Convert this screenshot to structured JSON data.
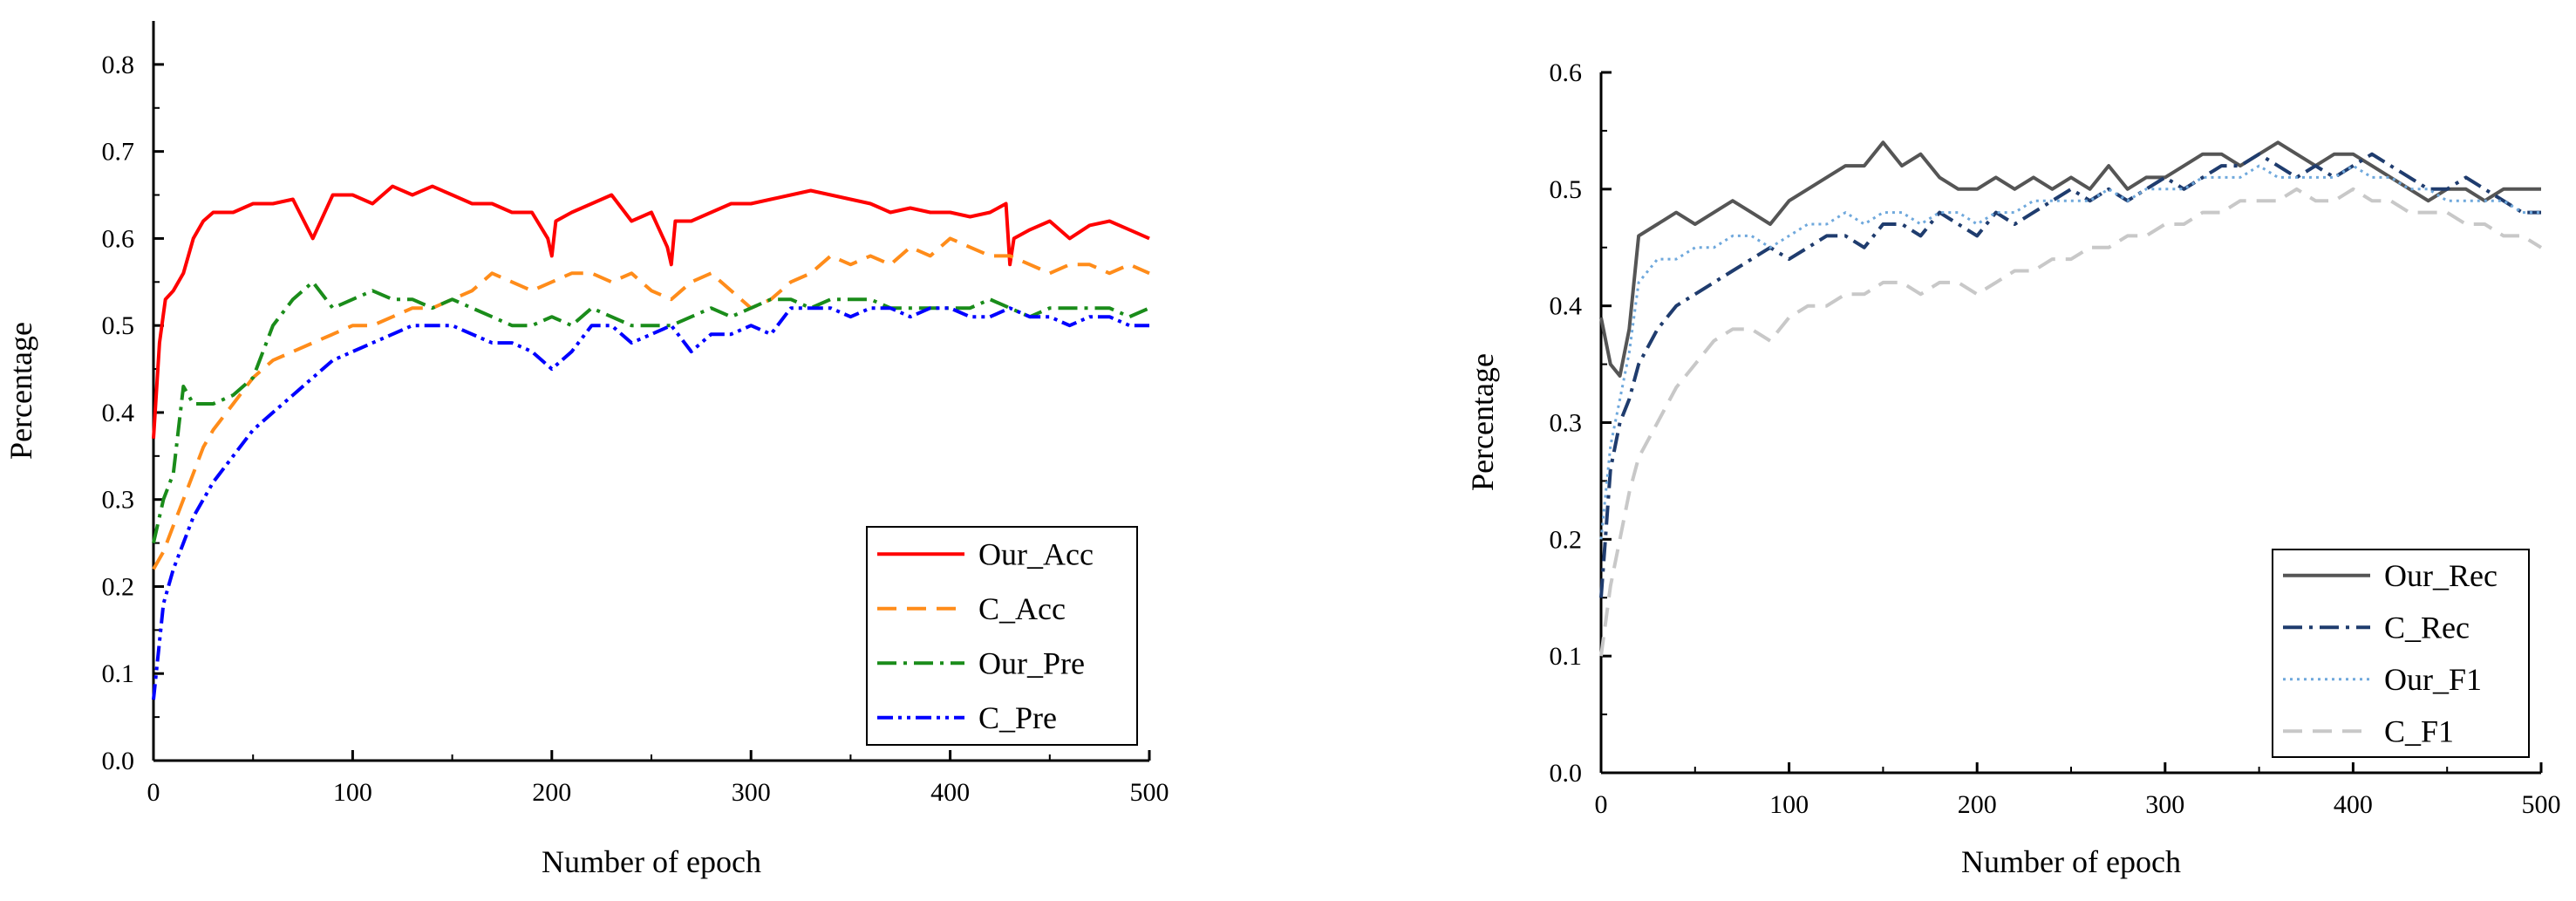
{
  "chart_data": [
    {
      "type": "line",
      "title": "",
      "xlabel": "Number of epoch",
      "ylabel": "Percentage",
      "xlim": [
        0,
        500
      ],
      "ylim": [
        0,
        0.85
      ],
      "xticks": [
        "0",
        "100",
        "200",
        "300",
        "400",
        "500"
      ],
      "yticks": [
        "0.0",
        "0.1",
        "0.2",
        "0.3",
        "0.4",
        "0.5",
        "0.6",
        "0.7",
        "0.8"
      ],
      "legend_position": "bottom-right",
      "series": [
        {
          "name": "Our_Acc",
          "color": "#ff0000",
          "style": "solid",
          "x": [
            0,
            3,
            6,
            10,
            15,
            20,
            25,
            30,
            40,
            50,
            60,
            70,
            80,
            90,
            100,
            110,
            120,
            130,
            140,
            150,
            160,
            170,
            180,
            190,
            198,
            200,
            202,
            210,
            220,
            230,
            240,
            250,
            258,
            260,
            262,
            270,
            280,
            290,
            300,
            310,
            320,
            330,
            340,
            350,
            360,
            370,
            380,
            390,
            400,
            410,
            420,
            428,
            430,
            432,
            440,
            450,
            460,
            470,
            480,
            490,
            500
          ],
          "y": [
            0.37,
            0.48,
            0.53,
            0.54,
            0.56,
            0.6,
            0.62,
            0.63,
            0.63,
            0.64,
            0.64,
            0.645,
            0.6,
            0.65,
            0.65,
            0.64,
            0.66,
            0.65,
            0.66,
            0.65,
            0.64,
            0.64,
            0.63,
            0.63,
            0.6,
            0.58,
            0.62,
            0.63,
            0.64,
            0.65,
            0.62,
            0.63,
            0.59,
            0.57,
            0.62,
            0.62,
            0.63,
            0.64,
            0.64,
            0.645,
            0.65,
            0.655,
            0.65,
            0.645,
            0.64,
            0.63,
            0.635,
            0.63,
            0.63,
            0.625,
            0.63,
            0.64,
            0.57,
            0.6,
            0.61,
            0.62,
            0.6,
            0.615,
            0.62,
            0.61,
            0.6
          ]
        },
        {
          "name": "C_Acc",
          "color": "#ff8c1a",
          "style": "dash",
          "x": [
            0,
            5,
            10,
            15,
            20,
            25,
            30,
            40,
            50,
            60,
            70,
            80,
            90,
            100,
            110,
            120,
            130,
            140,
            150,
            160,
            170,
            180,
            190,
            200,
            210,
            220,
            230,
            240,
            250,
            260,
            270,
            280,
            290,
            300,
            310,
            320,
            330,
            340,
            350,
            360,
            370,
            380,
            390,
            400,
            410,
            420,
            430,
            440,
            450,
            460,
            470,
            480,
            490,
            500
          ],
          "y": [
            0.22,
            0.24,
            0.27,
            0.3,
            0.33,
            0.36,
            0.38,
            0.41,
            0.44,
            0.46,
            0.47,
            0.48,
            0.49,
            0.5,
            0.5,
            0.51,
            0.52,
            0.52,
            0.53,
            0.54,
            0.56,
            0.55,
            0.54,
            0.55,
            0.56,
            0.56,
            0.55,
            0.56,
            0.54,
            0.53,
            0.55,
            0.56,
            0.54,
            0.52,
            0.53,
            0.55,
            0.56,
            0.58,
            0.57,
            0.58,
            0.57,
            0.59,
            0.58,
            0.6,
            0.59,
            0.58,
            0.58,
            0.57,
            0.56,
            0.57,
            0.57,
            0.56,
            0.57,
            0.56
          ]
        },
        {
          "name": "Our_Pre",
          "color": "#1a8c1a",
          "style": "dashdot",
          "x": [
            0,
            5,
            10,
            15,
            20,
            30,
            40,
            50,
            60,
            70,
            80,
            90,
            100,
            110,
            120,
            130,
            140,
            150,
            160,
            170,
            180,
            190,
            200,
            210,
            220,
            230,
            240,
            250,
            260,
            270,
            280,
            290,
            300,
            310,
            320,
            330,
            340,
            350,
            360,
            370,
            380,
            390,
            400,
            410,
            420,
            430,
            440,
            450,
            460,
            470,
            480,
            490,
            500
          ],
          "y": [
            0.25,
            0.3,
            0.33,
            0.43,
            0.41,
            0.41,
            0.42,
            0.44,
            0.5,
            0.53,
            0.55,
            0.52,
            0.53,
            0.54,
            0.53,
            0.53,
            0.52,
            0.53,
            0.52,
            0.51,
            0.5,
            0.5,
            0.51,
            0.5,
            0.52,
            0.51,
            0.5,
            0.5,
            0.5,
            0.51,
            0.52,
            0.51,
            0.52,
            0.53,
            0.53,
            0.52,
            0.53,
            0.53,
            0.53,
            0.52,
            0.52,
            0.52,
            0.52,
            0.52,
            0.53,
            0.52,
            0.51,
            0.52,
            0.52,
            0.52,
            0.52,
            0.51,
            0.52
          ]
        },
        {
          "name": "C_Pre",
          "color": "#0000ff",
          "style": "dashdotdot",
          "x": [
            0,
            5,
            10,
            15,
            20,
            30,
            40,
            50,
            60,
            70,
            80,
            90,
            100,
            110,
            120,
            130,
            140,
            150,
            160,
            170,
            180,
            190,
            200,
            210,
            220,
            230,
            240,
            250,
            260,
            270,
            280,
            290,
            300,
            310,
            320,
            330,
            340,
            350,
            360,
            370,
            380,
            390,
            400,
            410,
            420,
            430,
            440,
            450,
            460,
            470,
            480,
            490,
            500
          ],
          "y": [
            0.07,
            0.18,
            0.22,
            0.25,
            0.28,
            0.32,
            0.35,
            0.38,
            0.4,
            0.42,
            0.44,
            0.46,
            0.47,
            0.48,
            0.49,
            0.5,
            0.5,
            0.5,
            0.49,
            0.48,
            0.48,
            0.47,
            0.45,
            0.47,
            0.5,
            0.5,
            0.48,
            0.49,
            0.5,
            0.47,
            0.49,
            0.49,
            0.5,
            0.49,
            0.52,
            0.52,
            0.52,
            0.51,
            0.52,
            0.52,
            0.51,
            0.52,
            0.52,
            0.51,
            0.51,
            0.52,
            0.51,
            0.51,
            0.5,
            0.51,
            0.51,
            0.5,
            0.5
          ]
        }
      ]
    },
    {
      "type": "line",
      "title": "",
      "xlabel": "Number of epoch",
      "ylabel": "Percentage",
      "xlim": [
        0,
        500
      ],
      "ylim": [
        0,
        0.6
      ],
      "xticks": [
        "0",
        "100",
        "200",
        "300",
        "400",
        "500"
      ],
      "yticks": [
        "0.0",
        "0.1",
        "0.2",
        "0.3",
        "0.4",
        "0.5",
        "0.6"
      ],
      "legend_position": "bottom-right",
      "series": [
        {
          "name": "Our_Rec",
          "color": "#555555",
          "style": "solid",
          "x": [
            0,
            5,
            10,
            15,
            20,
            30,
            40,
            50,
            60,
            70,
            80,
            90,
            100,
            110,
            120,
            130,
            140,
            150,
            160,
            170,
            180,
            190,
            200,
            210,
            220,
            230,
            240,
            250,
            260,
            270,
            280,
            290,
            300,
            310,
            320,
            330,
            340,
            350,
            360,
            370,
            380,
            390,
            400,
            410,
            420,
            430,
            440,
            450,
            460,
            470,
            480,
            490,
            500
          ],
          "y": [
            0.39,
            0.35,
            0.34,
            0.38,
            0.46,
            0.47,
            0.48,
            0.47,
            0.48,
            0.49,
            0.48,
            0.47,
            0.49,
            0.5,
            0.51,
            0.52,
            0.52,
            0.54,
            0.52,
            0.53,
            0.51,
            0.5,
            0.5,
            0.51,
            0.5,
            0.51,
            0.5,
            0.51,
            0.5,
            0.52,
            0.5,
            0.51,
            0.51,
            0.52,
            0.53,
            0.53,
            0.52,
            0.53,
            0.54,
            0.53,
            0.52,
            0.53,
            0.53,
            0.52,
            0.51,
            0.5,
            0.49,
            0.5,
            0.5,
            0.49,
            0.5,
            0.5,
            0.5
          ]
        },
        {
          "name": "C_Rec",
          "color": "#1f3c6e",
          "style": "dashdot",
          "x": [
            0,
            5,
            10,
            15,
            20,
            30,
            40,
            50,
            60,
            70,
            80,
            90,
            100,
            110,
            120,
            130,
            140,
            150,
            160,
            170,
            180,
            190,
            200,
            210,
            220,
            230,
            240,
            250,
            260,
            270,
            280,
            290,
            300,
            310,
            320,
            330,
            340,
            350,
            360,
            370,
            380,
            390,
            400,
            410,
            420,
            430,
            440,
            450,
            460,
            470,
            480,
            490,
            500
          ],
          "y": [
            0.15,
            0.26,
            0.3,
            0.32,
            0.35,
            0.38,
            0.4,
            0.41,
            0.42,
            0.43,
            0.44,
            0.45,
            0.44,
            0.45,
            0.46,
            0.46,
            0.45,
            0.47,
            0.47,
            0.46,
            0.48,
            0.47,
            0.46,
            0.48,
            0.47,
            0.48,
            0.49,
            0.5,
            0.49,
            0.5,
            0.49,
            0.5,
            0.51,
            0.5,
            0.51,
            0.52,
            0.52,
            0.53,
            0.52,
            0.51,
            0.52,
            0.51,
            0.52,
            0.53,
            0.52,
            0.51,
            0.5,
            0.5,
            0.51,
            0.5,
            0.49,
            0.48,
            0.48
          ]
        },
        {
          "name": "Our_F1",
          "color": "#6fa8dc",
          "style": "dot",
          "x": [
            0,
            5,
            10,
            15,
            20,
            30,
            40,
            50,
            60,
            70,
            80,
            90,
            100,
            110,
            120,
            130,
            140,
            150,
            160,
            170,
            180,
            190,
            200,
            210,
            220,
            230,
            240,
            250,
            260,
            270,
            280,
            290,
            300,
            310,
            320,
            330,
            340,
            350,
            360,
            370,
            380,
            390,
            400,
            410,
            420,
            430,
            440,
            450,
            460,
            470,
            480,
            490,
            500
          ],
          "y": [
            0.2,
            0.28,
            0.32,
            0.36,
            0.42,
            0.44,
            0.44,
            0.45,
            0.45,
            0.46,
            0.46,
            0.45,
            0.46,
            0.47,
            0.47,
            0.48,
            0.47,
            0.48,
            0.48,
            0.47,
            0.48,
            0.48,
            0.47,
            0.48,
            0.48,
            0.49,
            0.49,
            0.49,
            0.49,
            0.5,
            0.49,
            0.5,
            0.5,
            0.5,
            0.51,
            0.51,
            0.51,
            0.52,
            0.51,
            0.51,
            0.51,
            0.51,
            0.52,
            0.51,
            0.51,
            0.5,
            0.5,
            0.49,
            0.49,
            0.49,
            0.49,
            0.48,
            0.48
          ]
        },
        {
          "name": "C_F1",
          "color": "#c8c8c8",
          "style": "dash",
          "x": [
            0,
            5,
            10,
            15,
            20,
            30,
            40,
            50,
            60,
            70,
            80,
            90,
            100,
            110,
            120,
            130,
            140,
            150,
            160,
            170,
            180,
            190,
            200,
            210,
            220,
            230,
            240,
            250,
            260,
            270,
            280,
            290,
            300,
            310,
            320,
            330,
            340,
            350,
            360,
            370,
            380,
            390,
            400,
            410,
            420,
            430,
            440,
            450,
            460,
            470,
            480,
            490,
            500
          ],
          "y": [
            0.1,
            0.16,
            0.2,
            0.24,
            0.27,
            0.3,
            0.33,
            0.35,
            0.37,
            0.38,
            0.38,
            0.37,
            0.39,
            0.4,
            0.4,
            0.41,
            0.41,
            0.42,
            0.42,
            0.41,
            0.42,
            0.42,
            0.41,
            0.42,
            0.43,
            0.43,
            0.44,
            0.44,
            0.45,
            0.45,
            0.46,
            0.46,
            0.47,
            0.47,
            0.48,
            0.48,
            0.49,
            0.49,
            0.49,
            0.5,
            0.49,
            0.49,
            0.5,
            0.49,
            0.49,
            0.48,
            0.48,
            0.48,
            0.47,
            0.47,
            0.46,
            0.46,
            0.45
          ]
        }
      ]
    }
  ]
}
